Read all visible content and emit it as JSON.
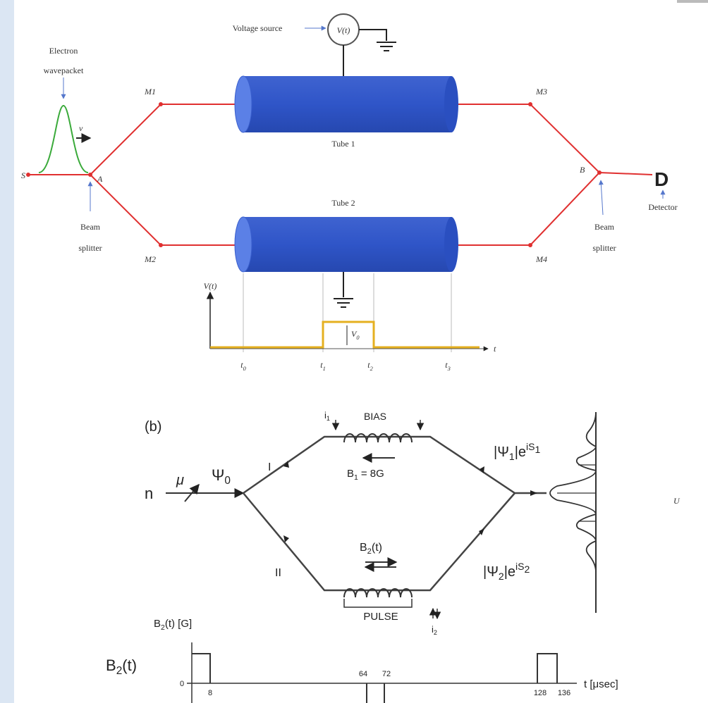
{
  "top": {
    "voltage_source": "Voltage source",
    "source_label": "V(t)",
    "electron_wavepacket": [
      "Electron",
      "wavepacket"
    ],
    "velocity": "v",
    "S": "S",
    "A": "A",
    "B": "B",
    "D": "D",
    "mirrors": [
      "M1",
      "M2",
      "M3",
      "M4"
    ],
    "tubes": [
      "Tube 1",
      "Tube 2"
    ],
    "detector": "Detector",
    "beam_splitter_left": [
      "Beam",
      "splitter"
    ],
    "beam_splitter_right": [
      "Beam",
      "splitter"
    ],
    "axis_v": "V(t)",
    "axis_t": "t",
    "v0": [
      "V",
      "0"
    ],
    "times": [
      [
        "t",
        "0"
      ],
      [
        "t",
        "1"
      ],
      [
        "t",
        "2"
      ],
      [
        "t",
        "3"
      ]
    ]
  },
  "bottom": {
    "panel": "(b)",
    "i1": [
      "i",
      "1"
    ],
    "bias": "BIAS",
    "b1": [
      "B",
      "1",
      "=  8G"
    ],
    "path1": "I",
    "path2": "II",
    "psi0": [
      "Ψ",
      "0"
    ],
    "mu": "μ",
    "n": "n",
    "psi1_term": [
      "|Ψ",
      "1",
      "|e",
      "iS",
      "1"
    ],
    "b2t": [
      "B",
      "2",
      "(t)"
    ],
    "pulse": "PULSE",
    "i2": [
      "i",
      "2"
    ],
    "psi2_term": [
      "|Ψ",
      "2",
      "|e",
      "iS",
      "2"
    ],
    "plot_ylabel": [
      "B",
      "2",
      "(t) [G]"
    ],
    "plot_name": [
      "B",
      "2",
      "(t)"
    ],
    "zero": "0",
    "ticks": [
      "8",
      "64",
      "72",
      "128",
      "136"
    ],
    "xlabel": "t  [μsec]",
    "operator": "U"
  }
}
